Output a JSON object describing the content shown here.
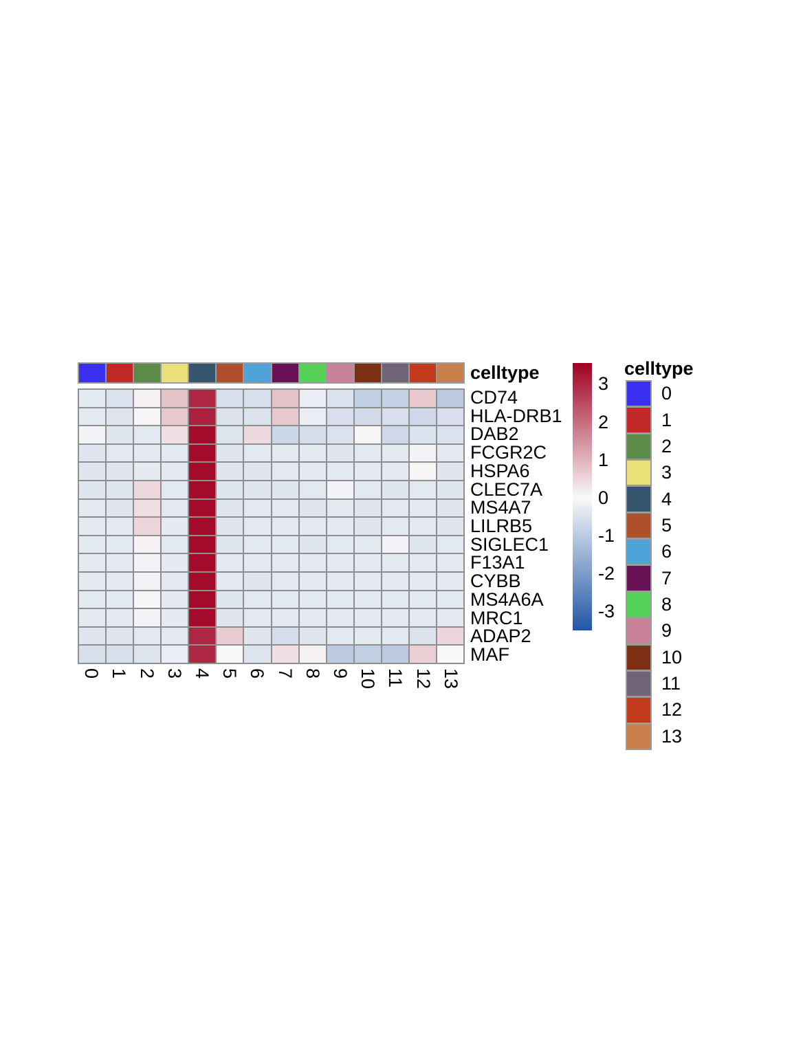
{
  "figure": {
    "annotation_title": "celltype",
    "legend_title": "celltype"
  },
  "celltypes": [
    {
      "label": "0",
      "color": "#3A30F2"
    },
    {
      "label": "1",
      "color": "#C12828"
    },
    {
      "label": "2",
      "color": "#5C8A49"
    },
    {
      "label": "3",
      "color": "#EAE077"
    },
    {
      "label": "4",
      "color": "#36566F"
    },
    {
      "label": "5",
      "color": "#AF4F2B"
    },
    {
      "label": "6",
      "color": "#4EA3D8"
    },
    {
      "label": "7",
      "color": "#691155"
    },
    {
      "label": "8",
      "color": "#56D257"
    },
    {
      "label": "9",
      "color": "#C8839B"
    },
    {
      "label": "10",
      "color": "#7B3014"
    },
    {
      "label": "11",
      "color": "#6F6378"
    },
    {
      "label": "12",
      "color": "#C23A1C"
    },
    {
      "label": "13",
      "color": "#C8804C"
    }
  ],
  "colorbar": {
    "ticks": [
      {
        "label": "3",
        "value": 3
      },
      {
        "label": "2",
        "value": 2
      },
      {
        "label": "1",
        "value": 1
      },
      {
        "label": "0",
        "value": 0
      },
      {
        "label": "-1",
        "value": -1
      },
      {
        "label": "-2",
        "value": -2
      },
      {
        "label": "-3",
        "value": -3
      }
    ],
    "max": 3.55,
    "min": -3.5,
    "max_color": "#A00021",
    "zero_color": "#F9F9F9",
    "min_color": "#2156A5"
  },
  "chart_data": {
    "type": "heatmap",
    "title": "",
    "rows": [
      "CD74",
      "HLA-DRB1",
      "DAB2",
      "FCGR2C",
      "HSPA6",
      "CLEC7A",
      "MS4A7",
      "LILRB5",
      "SIGLEC1",
      "F13A1",
      "CYBB",
      "MS4A6A",
      "MRC1",
      "ADAP2",
      "MAF"
    ],
    "columns": [
      "0",
      "1",
      "2",
      "3",
      "4",
      "5",
      "6",
      "7",
      "8",
      "9",
      "10",
      "11",
      "12",
      "13"
    ],
    "column_annotation": {
      "name": "celltype",
      "values": [
        "0",
        "1",
        "2",
        "3",
        "4",
        "5",
        "6",
        "7",
        "8",
        "9",
        "10",
        "11",
        "12",
        "13"
      ]
    },
    "values": [
      [
        -0.35,
        -0.5,
        0.1,
        0.8,
        3.0,
        -0.55,
        -0.55,
        0.8,
        -0.25,
        -0.5,
        -0.9,
        -0.85,
        0.7,
        -1.0
      ],
      [
        -0.35,
        -0.45,
        0.05,
        0.7,
        3.1,
        -0.5,
        -0.5,
        0.7,
        -0.25,
        -0.55,
        -0.65,
        -0.55,
        -0.7,
        -0.55
      ],
      [
        -0.1,
        -0.4,
        -0.35,
        0.35,
        3.4,
        -0.45,
        0.45,
        -0.75,
        -0.6,
        -0.5,
        0.05,
        -0.7,
        -0.5,
        -0.5
      ],
      [
        -0.4,
        -0.35,
        -0.35,
        -0.35,
        3.4,
        -0.4,
        -0.35,
        -0.35,
        -0.35,
        -0.4,
        -0.35,
        -0.35,
        -0.1,
        -0.35
      ],
      [
        -0.4,
        -0.4,
        -0.3,
        -0.35,
        3.4,
        -0.4,
        -0.4,
        -0.35,
        -0.35,
        -0.35,
        -0.35,
        -0.35,
        0.05,
        -0.4
      ],
      [
        -0.4,
        -0.4,
        0.45,
        -0.35,
        3.4,
        -0.4,
        -0.4,
        -0.4,
        -0.35,
        -0.1,
        -0.35,
        -0.4,
        -0.35,
        -0.4
      ],
      [
        -0.35,
        -0.4,
        0.4,
        -0.35,
        3.4,
        -0.4,
        -0.35,
        -0.35,
        -0.4,
        -0.35,
        -0.4,
        -0.35,
        -0.35,
        -0.4
      ],
      [
        -0.35,
        -0.35,
        0.5,
        -0.3,
        3.4,
        -0.4,
        -0.35,
        -0.35,
        -0.35,
        -0.35,
        -0.4,
        -0.35,
        -0.35,
        -0.4
      ],
      [
        -0.35,
        -0.35,
        0.1,
        -0.35,
        3.4,
        -0.4,
        -0.35,
        -0.35,
        -0.4,
        -0.35,
        -0.35,
        -0.1,
        -0.4,
        -0.35
      ],
      [
        -0.35,
        -0.35,
        -0.1,
        -0.3,
        3.4,
        -0.35,
        -0.35,
        -0.35,
        -0.35,
        -0.35,
        -0.35,
        -0.35,
        -0.35,
        -0.35
      ],
      [
        -0.35,
        -0.35,
        -0.15,
        -0.35,
        3.4,
        -0.35,
        -0.4,
        -0.35,
        -0.35,
        -0.35,
        -0.35,
        -0.35,
        -0.35,
        -0.35
      ],
      [
        -0.35,
        -0.35,
        0.05,
        -0.3,
        3.4,
        -0.4,
        -0.35,
        -0.35,
        -0.35,
        -0.35,
        -0.35,
        -0.35,
        -0.35,
        -0.35
      ],
      [
        -0.35,
        -0.35,
        -0.1,
        -0.3,
        3.4,
        -0.4,
        -0.35,
        -0.35,
        -0.35,
        -0.35,
        -0.35,
        -0.35,
        -0.35,
        -0.35
      ],
      [
        -0.4,
        -0.4,
        -0.35,
        -0.35,
        3.0,
        0.65,
        -0.4,
        -0.6,
        -0.4,
        -0.35,
        -0.35,
        -0.35,
        -0.5,
        0.5
      ],
      [
        -0.55,
        -0.55,
        -0.45,
        -0.25,
        3.0,
        -0.05,
        -0.45,
        0.35,
        0.1,
        -1.0,
        -0.9,
        -1.0,
        0.6,
        0.0
      ]
    ],
    "scale": {
      "min": -3.5,
      "max": 3.55,
      "palette": "blue-white-red",
      "legend_range": [
        -3,
        3
      ]
    }
  }
}
